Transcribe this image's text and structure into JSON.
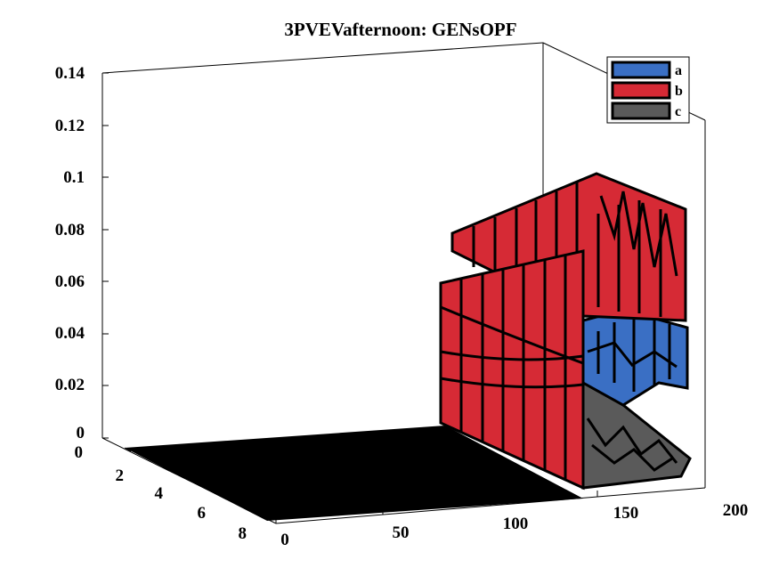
{
  "chart_data": {
    "type": "surface3d",
    "title": "3PVEVafternoon: GENsOPF",
    "z_axis": {
      "ticks": [
        "0",
        "0.02",
        "0.04",
        "0.06",
        "0.08",
        "0.1",
        "0.12",
        "0.14"
      ],
      "range": [
        0,
        0.14
      ]
    },
    "x_axis": {
      "ticks": [
        "0",
        "50",
        "100",
        "150",
        "200"
      ],
      "range": [
        0,
        200
      ]
    },
    "y_axis": {
      "ticks": [
        "0",
        "2",
        "4",
        "6",
        "8"
      ],
      "range": [
        0,
        9
      ]
    },
    "legend": {
      "placement": "top-right",
      "items": [
        {
          "label": "a",
          "color": "#3a6fc4"
        },
        {
          "label": "b",
          "color": "#d62a35"
        },
        {
          "label": "c",
          "color": "#5a5a5a"
        }
      ]
    },
    "series": [
      {
        "name": "a",
        "color": "#3a6fc4",
        "approx_level": 0.04,
        "note_range": [
          0.025,
          0.045
        ]
      },
      {
        "name": "b",
        "color": "#d62a35",
        "approx_level": 0.08,
        "note_range": [
          0.055,
          0.1
        ]
      },
      {
        "name": "c",
        "color": "#5a5a5a",
        "approx_level": 0.01,
        "note_range": [
          0.0,
          0.02
        ]
      }
    ],
    "floor_color": "#000000",
    "grid": false
  }
}
